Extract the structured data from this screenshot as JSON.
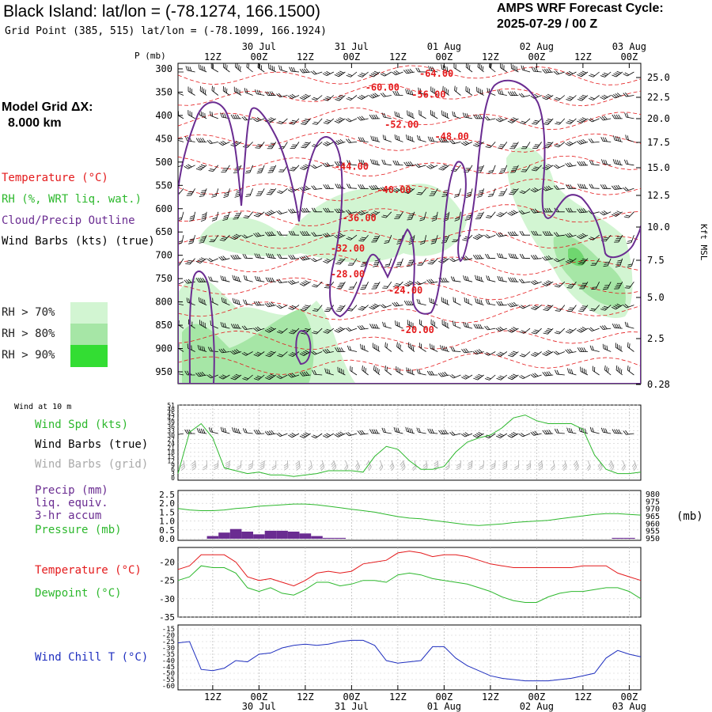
{
  "header": {
    "title": "Black Island:  lat/lon = (-78.1274, 166.1500)",
    "grid_point": "Grid Point (385, 515) lat/lon = (-78.1099, 166.1924)",
    "cycle_line1": "AMPS WRF Forecast Cycle:",
    "cycle_line2": "2025-07-29 / 00  Z"
  },
  "left_legend": {
    "model_grid_line1": "Model Grid ΔX:",
    "model_grid_line2": "8.000 km",
    "temperature": "Temperature (°C)",
    "rh": "RH (%, WRT liq. wat.)",
    "cloud": "Cloud/Precip Outline",
    "wind": "Wind Barbs (kts) (true)",
    "rh70": "RH > 70%",
    "rh80": "RH > 80%",
    "rh90": "RH > 90%"
  },
  "colors": {
    "temperature": "#e41a1c",
    "rh": "#2db82d",
    "cloud": "#6a2c91",
    "wind_grid": "#aaaaaa",
    "chill": "#1f2fbf",
    "rh70": "#d2f5d2",
    "rh80": "#a6e6a6",
    "rh90": "#33dd33"
  },
  "time_axis": {
    "top_ticks": [
      "12Z",
      "00Z",
      "12Z",
      "00Z",
      "12Z",
      "00Z",
      "12Z",
      "00Z",
      "12Z",
      "00Z"
    ],
    "top_dates": [
      "30 Jul",
      "31 Jul",
      "01 Aug",
      "02 Aug",
      "03 Aug"
    ],
    "bottom_ticks": [
      "12Z",
      "00Z",
      "12Z",
      "00Z",
      "12Z",
      "00Z",
      "12Z",
      "00Z",
      "12Z",
      "00Z"
    ],
    "bottom_dates": [
      "30 Jul",
      "31 Jul",
      "01 Aug",
      "02 Aug",
      "03 Aug"
    ]
  },
  "panel_labels": {
    "p_mb": "P (mb)",
    "kft": "Kft MSL",
    "wind10": "Wind at 10 m",
    "wind_spd": "Wind Spd (kts)",
    "barbs_true": "Wind Barbs (true)",
    "barbs_grid": "Wind Barbs (grid)",
    "precip_line1": "Precip (mm)",
    "precip_line2": "liq. equiv.",
    "precip_line3": "3-hr accum",
    "pressure": "Pressure (mb)",
    "pressure_unit": "(mb)",
    "temp": "Temperature (°C)",
    "dewpoint": "Dewpoint (°C)",
    "windchill": "Wind Chill T (°C)"
  },
  "chart_data": [
    {
      "type": "heatmap",
      "name": "cross-section",
      "x_hours": [
        0,
        120
      ],
      "pressure_axis": [
        "300",
        "350",
        "400",
        "450",
        "500",
        "550",
        "600",
        "650",
        "700",
        "750",
        "800",
        "850",
        "900",
        "950"
      ],
      "height_axis": [
        "25.0",
        "22.5",
        "20.0",
        "17.5",
        "15.0",
        "12.5",
        "10.0",
        "7.5",
        "5.0",
        "2.5",
        "0.28"
      ],
      "temperature_labels": [
        {
          "t": 67,
          "p": 310,
          "text": "-64.00"
        },
        {
          "t": 53,
          "p": 340,
          "text": "-60.00"
        },
        {
          "t": 65,
          "p": 355,
          "text": "-56.00"
        },
        {
          "t": 58,
          "p": 420,
          "text": "-52.00"
        },
        {
          "t": 71,
          "p": 445,
          "text": "-48.00"
        },
        {
          "t": 45,
          "p": 510,
          "text": "-44.00"
        },
        {
          "t": 56,
          "p": 560,
          "text": "-40.00"
        },
        {
          "t": 47,
          "p": 620,
          "text": "-36.00"
        },
        {
          "t": 44,
          "p": 685,
          "text": "-32.00"
        },
        {
          "t": 44,
          "p": 740,
          "text": "-28.00"
        },
        {
          "t": 59,
          "p": 775,
          "text": "-24.00"
        },
        {
          "t": 62,
          "p": 860,
          "text": "-20.00"
        }
      ]
    },
    {
      "type": "line",
      "name": "wind-speed",
      "ylabel": "Wind Spd (kts)",
      "y_ticks": [
        0,
        3,
        6,
        9,
        12,
        15,
        18,
        21,
        24,
        27,
        30,
        33,
        36,
        39,
        42,
        45,
        48,
        51
      ],
      "ylim": [
        0,
        51
      ],
      "x": [
        0,
        3,
        6,
        9,
        12,
        15,
        18,
        21,
        24,
        27,
        30,
        33,
        36,
        39,
        42,
        45,
        48,
        51,
        54,
        57,
        60,
        63,
        66,
        69,
        72,
        75,
        78,
        81,
        84,
        87,
        90,
        93,
        96,
        99,
        102,
        105,
        108,
        111,
        114,
        117,
        120
      ],
      "series": [
        {
          "name": "Wind Spd (kts)",
          "values": [
            3,
            32,
            38,
            28,
            7,
            5,
            3,
            4,
            2,
            2,
            1,
            2,
            3,
            5,
            5,
            5,
            4,
            15,
            22,
            20,
            12,
            6,
            6,
            8,
            18,
            25,
            28,
            30,
            35,
            42,
            44,
            40,
            38,
            38,
            38,
            34,
            16,
            6,
            3,
            3,
            4
          ]
        }
      ]
    },
    {
      "type": "bar",
      "name": "precip-pressure",
      "ylabel": "Precip (mm)",
      "y_ticks": [
        "0.0",
        "0.5",
        "1.0",
        "1.5",
        "2.0",
        "2.5"
      ],
      "y2_ticks": [
        "950",
        "955",
        "960",
        "965",
        "970",
        "975",
        "980"
      ],
      "ylim": [
        0,
        2.5
      ],
      "y2lim": [
        950,
        980
      ],
      "x": [
        0,
        3,
        6,
        9,
        12,
        15,
        18,
        21,
        24,
        27,
        30,
        33,
        36,
        39,
        42,
        45,
        48,
        51,
        54,
        57,
        60,
        63,
        66,
        69,
        72,
        75,
        78,
        81,
        84,
        87,
        90,
        93,
        96,
        99,
        102,
        105,
        108,
        111,
        114,
        117,
        120
      ],
      "series": [
        {
          "name": "Precip (mm)",
          "values": [
            0,
            0,
            0,
            0.15,
            0.35,
            0.55,
            0.4,
            0.25,
            0.45,
            0.45,
            0.4,
            0.3,
            0.15,
            0.05,
            0.05,
            0,
            0,
            0,
            0,
            0,
            0,
            0,
            0,
            0,
            0,
            0,
            0,
            0,
            0,
            0,
            0,
            0,
            0,
            0,
            0,
            0,
            0,
            0,
            0.05,
            0.05,
            0
          ]
        },
        {
          "name": "Pressure (mb)",
          "values": [
            970.5,
            969.5,
            969,
            969,
            969.5,
            970.5,
            971,
            972,
            972.5,
            973,
            973.5,
            973.5,
            973,
            972,
            971,
            970,
            969,
            968,
            966.5,
            965,
            964,
            963.5,
            962.5,
            961.5,
            960.5,
            959.5,
            959,
            959.5,
            960,
            961,
            961.5,
            962,
            962.5,
            963.5,
            964.5,
            965.5,
            966.5,
            967,
            967,
            966.5,
            966
          ]
        }
      ]
    },
    {
      "type": "line",
      "name": "temperature-dewpoint",
      "y_ticks": [
        -35,
        -30,
        -25,
        -20
      ],
      "ylim": [
        -35,
        -16
      ],
      "x": [
        0,
        3,
        6,
        9,
        12,
        15,
        18,
        21,
        24,
        27,
        30,
        33,
        36,
        39,
        42,
        45,
        48,
        51,
        54,
        57,
        60,
        63,
        66,
        69,
        72,
        75,
        78,
        81,
        84,
        87,
        90,
        93,
        96,
        99,
        102,
        105,
        108,
        111,
        114,
        117,
        120
      ],
      "series": [
        {
          "name": "Temperature (°C)",
          "values": [
            -22,
            -21,
            -18,
            -18,
            -18,
            -20,
            -24,
            -25,
            -24.5,
            -25.5,
            -26.5,
            -25,
            -23,
            -22.5,
            -23,
            -22.5,
            -20.5,
            -20,
            -19.5,
            -17.5,
            -17,
            -17.5,
            -18.5,
            -18,
            -18,
            -18.5,
            -19.5,
            -20.5,
            -21,
            -21.5,
            -21.5,
            -21.5,
            -21.5,
            -21.5,
            -21.5,
            -21,
            -21,
            -21,
            -23,
            -24,
            -25
          ]
        },
        {
          "name": "Dewpoint (°C)",
          "values": [
            -25,
            -24,
            -21,
            -21.5,
            -21.5,
            -23,
            -27,
            -28,
            -27,
            -28.5,
            -29,
            -27.5,
            -25.5,
            -25.5,
            -26.5,
            -26,
            -25,
            -25,
            -25.5,
            -23.5,
            -23,
            -23.5,
            -24.5,
            -25,
            -25.5,
            -26,
            -27,
            -28,
            -29.5,
            -30.5,
            -31,
            -31,
            -29.5,
            -28.5,
            -28,
            -28,
            -27.5,
            -27,
            -27,
            -28,
            -30
          ]
        }
      ]
    },
    {
      "type": "line",
      "name": "wind-chill",
      "y_ticks": [
        -60,
        -55,
        -50,
        -45,
        -40,
        -35,
        -30,
        -25,
        -20,
        -15
      ],
      "ylim": [
        -60,
        -15
      ],
      "x": [
        0,
        3,
        6,
        9,
        12,
        15,
        18,
        21,
        24,
        27,
        30,
        33,
        36,
        39,
        42,
        45,
        48,
        51,
        54,
        57,
        60,
        63,
        66,
        69,
        72,
        75,
        78,
        81,
        84,
        87,
        90,
        93,
        96,
        99,
        102,
        105,
        108,
        111,
        114,
        117,
        120
      ],
      "series": [
        {
          "name": "Wind Chill T (°C)",
          "values": [
            -26,
            -25,
            -47,
            -48,
            -46,
            -40,
            -41,
            -35,
            -34,
            -30,
            -28,
            -27,
            -28,
            -27,
            -25,
            -24,
            -24,
            -28,
            -40,
            -42,
            -41,
            -40,
            -29,
            -29,
            -38,
            -44,
            -48,
            -52,
            -54,
            -55,
            -56,
            -56,
            -56,
            -55,
            -54,
            -52,
            -50,
            -38,
            -32,
            -35,
            -37
          ]
        }
      ]
    }
  ]
}
